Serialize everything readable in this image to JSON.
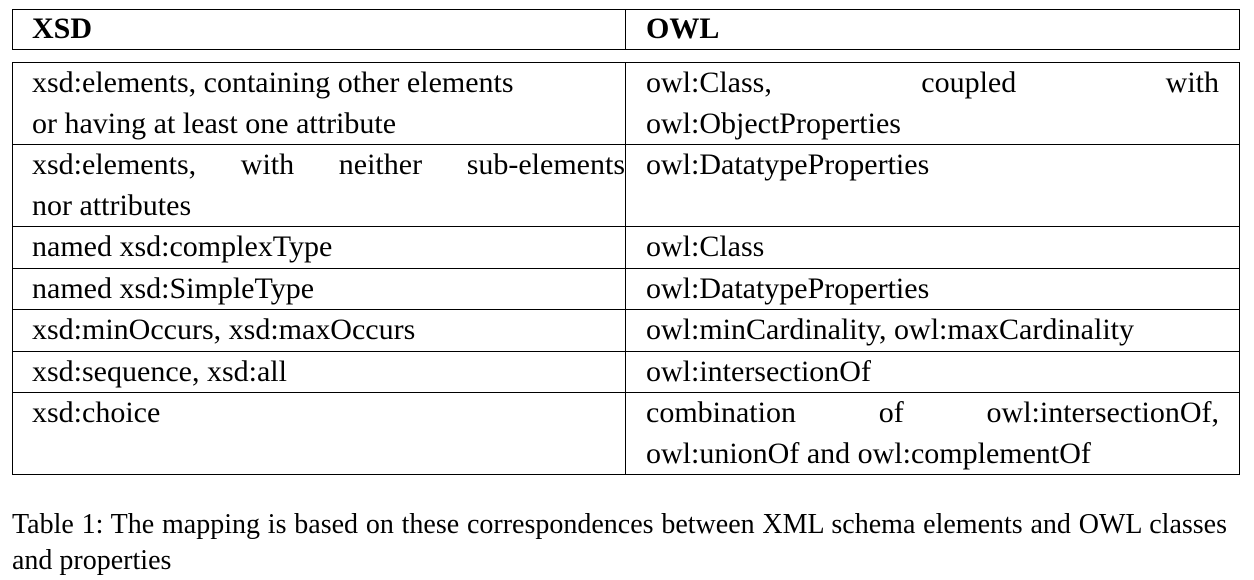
{
  "table": {
    "headers": [
      "XSD",
      "OWL"
    ],
    "rows": [
      {
        "xsd": [
          "xsd:elements, containing other elements",
          "or having at least one attribute"
        ],
        "owl": [
          "owl:Class, coupled with",
          "owl:ObjectProperties"
        ]
      },
      {
        "xsd": [
          "xsd:elements, with neither sub-elements",
          "nor attributes"
        ],
        "owl": [
          "owl:DatatypeProperties"
        ]
      },
      {
        "xsd": [
          "named xsd:complexType"
        ],
        "owl": [
          "owl:Class"
        ]
      },
      {
        "xsd": [
          "named xsd:SimpleType"
        ],
        "owl": [
          "owl:DatatypeProperties"
        ]
      },
      {
        "xsd": [
          "xsd:minOccurs, xsd:maxOccurs"
        ],
        "owl": [
          "owl:minCardinality, owl:maxCardinality"
        ]
      },
      {
        "xsd": [
          "xsd:sequence, xsd:all"
        ],
        "owl": [
          "owl:intersectionOf"
        ]
      },
      {
        "xsd": [
          "xsd:choice"
        ],
        "owl": [
          "combination of owl:intersectionOf,",
          "owl:unionOf and owl:complementOf"
        ]
      }
    ]
  },
  "caption": "Table 1: The mapping is based on these correspondences between XML schema elements and OWL classes and properties"
}
